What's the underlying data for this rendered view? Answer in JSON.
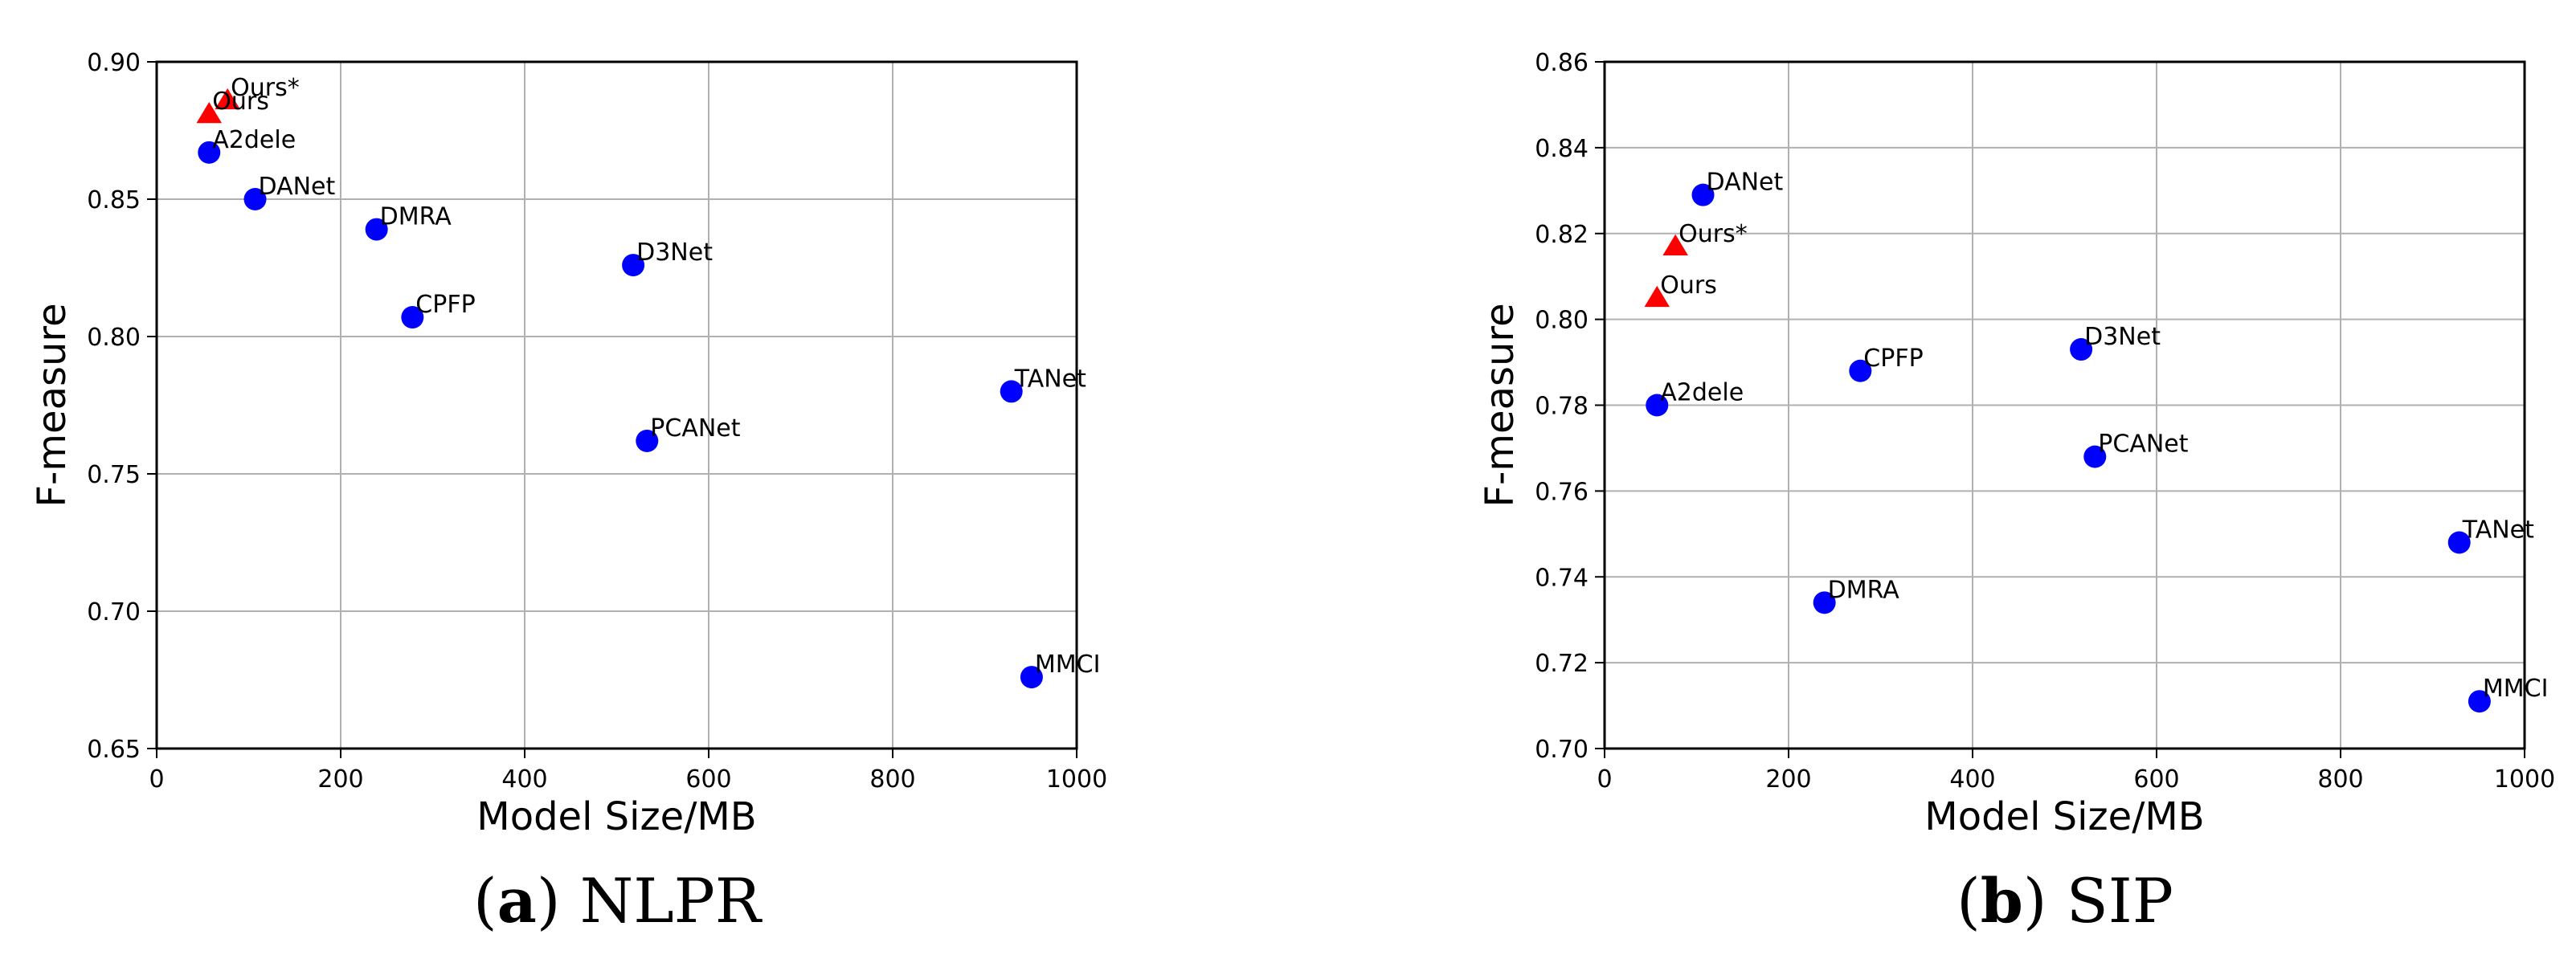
{
  "chart_data": [
    {
      "type": "scatter",
      "caption_letter": "a",
      "caption_text": "NLPR",
      "xlabel": "Model Size/MB",
      "ylabel": "F-measure",
      "xlim": [
        0,
        1000
      ],
      "ylim": [
        0.65,
        0.9
      ],
      "xticks": [
        0,
        200,
        400,
        600,
        800,
        1000
      ],
      "xtick_labels": [
        "0",
        "200",
        "400",
        "600",
        "800",
        "1000"
      ],
      "yticks": [
        0.65,
        0.7,
        0.75,
        0.8,
        0.85,
        0.9
      ],
      "ytick_labels": [
        "0.65",
        "0.70",
        "0.75",
        "0.80",
        "0.85",
        "0.90"
      ],
      "grid": true,
      "points": [
        {
          "label": "Ours*",
          "x": 77,
          "y": 0.886,
          "marker": "triangle",
          "color": "#ff0000"
        },
        {
          "label": "Ours",
          "x": 57,
          "y": 0.881,
          "marker": "triangle",
          "color": "#ff0000"
        },
        {
          "label": "A2dele",
          "x": 57,
          "y": 0.867,
          "marker": "circle",
          "color": "#0000ff"
        },
        {
          "label": "DANet",
          "x": 107,
          "y": 0.85,
          "marker": "circle",
          "color": "#0000ff"
        },
        {
          "label": "DMRA",
          "x": 239,
          "y": 0.839,
          "marker": "circle",
          "color": "#0000ff"
        },
        {
          "label": "D3Net",
          "x": 518,
          "y": 0.826,
          "marker": "circle",
          "color": "#0000ff"
        },
        {
          "label": "CPFP",
          "x": 278,
          "y": 0.807,
          "marker": "circle",
          "color": "#0000ff"
        },
        {
          "label": "TANet",
          "x": 929,
          "y": 0.78,
          "marker": "circle",
          "color": "#0000ff"
        },
        {
          "label": "PCANet",
          "x": 533,
          "y": 0.762,
          "marker": "circle",
          "color": "#0000ff"
        },
        {
          "label": "MMCI",
          "x": 951,
          "y": 0.676,
          "marker": "circle",
          "color": "#0000ff"
        }
      ]
    },
    {
      "type": "scatter",
      "caption_letter": "b",
      "caption_text": "SIP",
      "xlabel": "Model Size/MB",
      "ylabel": "F-measure",
      "xlim": [
        0,
        1000
      ],
      "ylim": [
        0.7,
        0.86
      ],
      "xticks": [
        0,
        200,
        400,
        600,
        800,
        1000
      ],
      "xtick_labels": [
        "0",
        "200",
        "400",
        "600",
        "800",
        "1000"
      ],
      "yticks": [
        0.7,
        0.72,
        0.74,
        0.76,
        0.78,
        0.8,
        0.82,
        0.84,
        0.86
      ],
      "ytick_labels": [
        "0.70",
        "0.72",
        "0.74",
        "0.76",
        "0.78",
        "0.80",
        "0.82",
        "0.84",
        "0.86"
      ],
      "grid": true,
      "points": [
        {
          "label": "DANet",
          "x": 107,
          "y": 0.829,
          "marker": "circle",
          "color": "#0000ff"
        },
        {
          "label": "Ours*",
          "x": 77,
          "y": 0.817,
          "marker": "triangle",
          "color": "#ff0000"
        },
        {
          "label": "Ours",
          "x": 57,
          "y": 0.805,
          "marker": "triangle",
          "color": "#ff0000"
        },
        {
          "label": "D3Net",
          "x": 518,
          "y": 0.793,
          "marker": "circle",
          "color": "#0000ff"
        },
        {
          "label": "CPFP",
          "x": 278,
          "y": 0.788,
          "marker": "circle",
          "color": "#0000ff"
        },
        {
          "label": "A2dele",
          "x": 57,
          "y": 0.78,
          "marker": "circle",
          "color": "#0000ff"
        },
        {
          "label": "PCANet",
          "x": 533,
          "y": 0.768,
          "marker": "circle",
          "color": "#0000ff"
        },
        {
          "label": "TANet",
          "x": 929,
          "y": 0.748,
          "marker": "circle",
          "color": "#0000ff"
        },
        {
          "label": "DMRA",
          "x": 239,
          "y": 0.734,
          "marker": "circle",
          "color": "#0000ff"
        },
        {
          "label": "MMCI",
          "x": 951,
          "y": 0.711,
          "marker": "circle",
          "color": "#0000ff"
        }
      ]
    }
  ]
}
